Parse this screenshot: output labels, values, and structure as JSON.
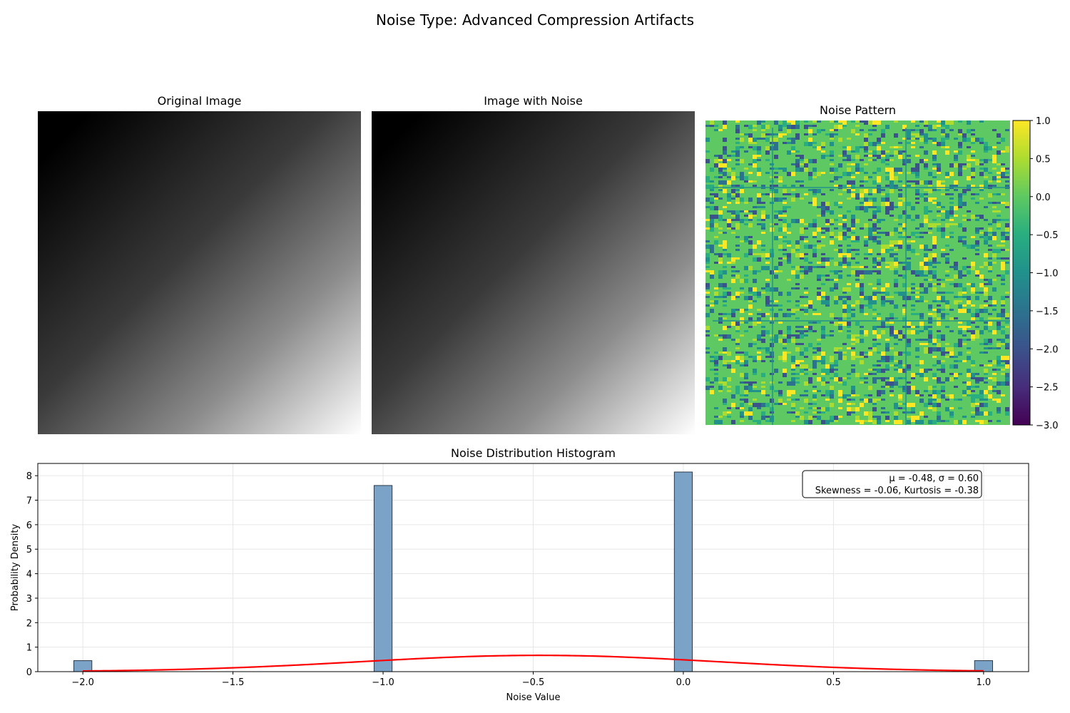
{
  "figure": {
    "title": "Noise Type: Advanced Compression Artifacts"
  },
  "panels": {
    "original": {
      "title": "Original Image"
    },
    "noisy": {
      "title": "Image with Noise"
    },
    "pattern": {
      "title": "Noise Pattern",
      "colorbar": {
        "min": -3.0,
        "max": 1.0,
        "ticks": [
          "1.0",
          "0.5",
          "0.0",
          "−0.5",
          "−1.0",
          "−1.5",
          "−2.0",
          "−2.5",
          "−3.0"
        ],
        "colormap": "viridis"
      }
    }
  },
  "chart_data": {
    "type": "bar",
    "title": "Noise Distribution Histogram",
    "xlabel": "Noise Value",
    "ylabel": "Probability Density",
    "xlim": [
      -2.15,
      1.15
    ],
    "ylim": [
      0,
      8.5
    ],
    "xticks": [
      -2.0,
      -1.5,
      -1.0,
      -0.5,
      0.0,
      0.5,
      1.0
    ],
    "xtick_labels": [
      "−2.0",
      "−1.5",
      "−1.0",
      "−0.5",
      "0.0",
      "0.5",
      "1.0"
    ],
    "yticks": [
      0,
      1,
      2,
      3,
      4,
      5,
      6,
      7,
      8
    ],
    "grid": true,
    "bars": [
      {
        "x": -2.0,
        "width": 0.06,
        "density": 0.45
      },
      {
        "x": -1.0,
        "width": 0.06,
        "density": 7.6
      },
      {
        "x": 0.0,
        "width": 0.06,
        "density": 8.15
      },
      {
        "x": 1.0,
        "width": 0.06,
        "density": 0.45
      }
    ],
    "bar_color": "#7ba3c8",
    "bar_edge_color": "#2e3a46",
    "fit_curve": {
      "mu": -0.48,
      "sigma": 0.6,
      "color": "#ff0000"
    },
    "stats": {
      "line1": "μ = -0.48, σ = 0.60",
      "line2": "Skewness = -0.06, Kurtosis = -0.38"
    }
  }
}
